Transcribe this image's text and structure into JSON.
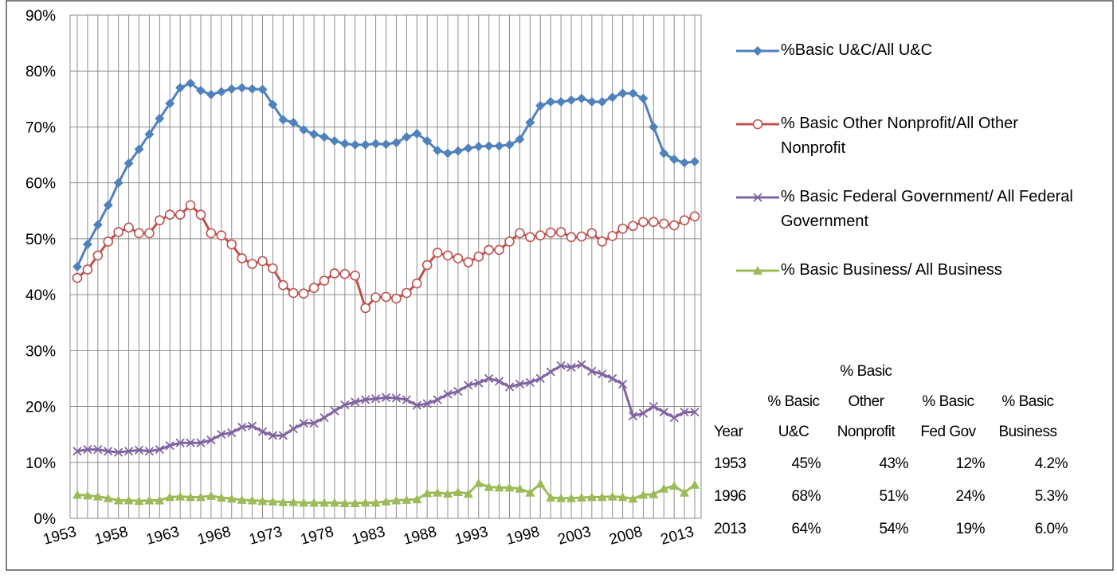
{
  "chart_data": {
    "type": "line",
    "categories": [
      "1953",
      null,
      null,
      null,
      null,
      "1958",
      null,
      null,
      null,
      null,
      "1963",
      null,
      null,
      null,
      null,
      "1968",
      null,
      null,
      null,
      null,
      "1973",
      null,
      null,
      null,
      null,
      "1978",
      null,
      null,
      null,
      null,
      "1983",
      null,
      null,
      null,
      null,
      "1988",
      null,
      null,
      null,
      null,
      "1993",
      null,
      null,
      null,
      null,
      "1998",
      null,
      null,
      null,
      null,
      "2003",
      null,
      null,
      null,
      null,
      "2008",
      null,
      null,
      null,
      null,
      "2013"
    ],
    "ylim": [
      0,
      90
    ],
    "yticks": [
      {
        "value": 0,
        "label": "0%"
      },
      {
        "value": 10,
        "label": "10%"
      },
      {
        "value": 20,
        "label": "20%"
      },
      {
        "value": 30,
        "label": "30%"
      },
      {
        "value": 40,
        "label": "40%"
      },
      {
        "value": 50,
        "label": "50%"
      },
      {
        "value": 60,
        "label": "60%"
      },
      {
        "value": 70,
        "label": "70%"
      },
      {
        "value": 80,
        "label": "80%"
      },
      {
        "value": 90,
        "label": "90%"
      }
    ],
    "grid": true,
    "series": [
      {
        "name": "%Basic U&C/All U&C",
        "color": "#4f81bd",
        "marker": "diamond",
        "values": [
          45,
          49,
          52.5,
          56,
          60,
          63.5,
          66,
          68.7,
          71.5,
          74.2,
          77,
          77.8,
          76.5,
          75.8,
          76.3,
          76.8,
          77,
          76.8,
          76.7,
          74,
          71.3,
          70.8,
          69.5,
          68.7,
          68.2,
          67.5,
          67,
          66.8,
          66.8,
          67,
          66.9,
          67.2,
          68.2,
          68.8,
          67.5,
          65.8,
          65.3,
          65.7,
          66.2,
          66.5,
          66.6,
          66.6,
          66.8,
          67.8,
          70.8,
          73.8,
          74.5,
          74.5,
          74.8,
          75.1,
          74.5,
          74.5,
          75.3,
          76,
          76,
          75.1,
          70,
          65.3,
          64.2,
          63.6,
          63.8
        ]
      },
      {
        "name": "% Basic Other Nonprofit/All Other Nonprofit",
        "color": "#c0504d",
        "marker": "circle",
        "values": [
          43,
          44.5,
          47,
          49.5,
          51.2,
          52,
          51,
          51,
          53.3,
          54.3,
          54.3,
          56,
          54.3,
          51,
          50.6,
          49,
          46.5,
          45.5,
          46,
          44.7,
          41.7,
          40.3,
          40.2,
          41.2,
          42.5,
          43.8,
          43.7,
          43.4,
          37.6,
          39.5,
          39.6,
          39.3,
          40.3,
          42,
          45.3,
          47.5,
          47,
          46.5,
          45.8,
          46.8,
          48,
          48,
          49.5,
          51,
          50.3,
          50.6,
          51.1,
          51.2,
          50.3,
          50.4,
          51,
          49.5,
          50.5,
          51.8,
          52.3,
          53,
          53,
          52.7,
          52.4,
          53.3,
          54
        ]
      },
      {
        "name": "% Basic Federal Government/ All Federal Government",
        "color": "#8064a2",
        "marker": "x",
        "values": [
          12,
          12.3,
          12.3,
          12,
          11.8,
          12,
          12.2,
          12,
          12.3,
          13,
          13.5,
          13.5,
          13.5,
          14,
          15,
          15.3,
          16.3,
          16.5,
          15.5,
          14.8,
          14.8,
          16,
          17,
          17,
          18,
          19.2,
          20.3,
          20.8,
          21.2,
          21.4,
          21.6,
          21.5,
          21.2,
          20.2,
          20.5,
          21.2,
          22.2,
          22.7,
          23.8,
          24.2,
          25,
          24.5,
          23.5,
          24,
          24.3,
          25,
          26.2,
          27.3,
          27,
          27.5,
          26.3,
          25.8,
          25,
          24,
          18.3,
          18.8,
          20,
          19,
          18,
          19,
          19
        ]
      },
      {
        "name": "% Basic Business/ All Business",
        "color": "#9bbb59",
        "marker": "triangle",
        "values": [
          4.2,
          4.1,
          3.9,
          3.6,
          3.2,
          3.2,
          3.1,
          3.2,
          3.2,
          3.8,
          3.9,
          3.8,
          3.8,
          4,
          3.7,
          3.5,
          3.3,
          3.2,
          3.1,
          3,
          2.9,
          2.9,
          2.8,
          2.8,
          2.8,
          2.8,
          2.7,
          2.7,
          2.8,
          2.8,
          3,
          3.2,
          3.3,
          3.4,
          4.5,
          4.6,
          4.4,
          4.7,
          4.4,
          6.3,
          5.6,
          5.5,
          5.5,
          5.3,
          4.6,
          6.2,
          3.7,
          3.6,
          3.6,
          3.7,
          3.8,
          3.8,
          3.9,
          3.8,
          3.5,
          4.2,
          4.3,
          5.3,
          5.8,
          4.6,
          6.0
        ]
      }
    ]
  },
  "table": {
    "header": [
      "Year",
      "% Basic U&C",
      "% Basic Other Nonprofit",
      "% Basic Fed Gov",
      "% Basic Business"
    ],
    "rows": [
      [
        "1953",
        "45%",
        "43%",
        "12%",
        "4.2%"
      ],
      [
        "1996",
        "68%",
        "51%",
        "24%",
        "5.3%"
      ],
      [
        "2013",
        "64%",
        "54%",
        "19%",
        "6.0%"
      ]
    ]
  }
}
